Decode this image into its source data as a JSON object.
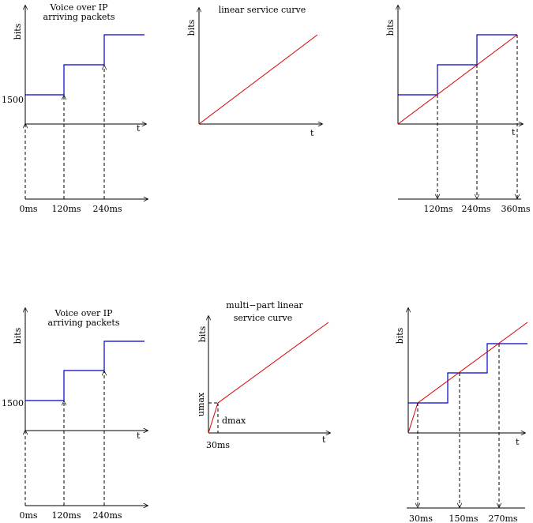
{
  "colors": {
    "arrival_curve": "#0000cc",
    "service_curve": "#dd0000",
    "axes": "#000000"
  },
  "panels": {
    "top_left": {
      "title_line1": "Voice over IP",
      "title_line2": "arriving packets",
      "ylabel": "bits",
      "xlabel": "t",
      "step_label": "1500",
      "timeline": [
        "0ms",
        "120ms",
        "240ms"
      ]
    },
    "top_middle": {
      "title": "linear service curve",
      "ylabel": "bits",
      "xlabel": "t"
    },
    "top_right": {
      "ylabel": "bits",
      "xlabel": "t",
      "timeline": [
        "120ms",
        "240ms",
        "360ms"
      ]
    },
    "bottom_left": {
      "title_line1": "Voice over IP",
      "title_line2": "arriving packets",
      "ylabel": "bits",
      "xlabel": "t",
      "step_label": "1500",
      "timeline": [
        "0ms",
        "120ms",
        "240ms"
      ]
    },
    "bottom_middle": {
      "title_line1": "multi−part linear",
      "title_line2": "service curve",
      "ylabel": "bits",
      "xlabel": "t",
      "umax_label": "umax",
      "dmax_label": "dmax",
      "x_tick": "30ms"
    },
    "bottom_right": {
      "ylabel": "bits",
      "xlabel": "t",
      "timeline": [
        "30ms",
        "150ms",
        "270ms"
      ]
    }
  }
}
